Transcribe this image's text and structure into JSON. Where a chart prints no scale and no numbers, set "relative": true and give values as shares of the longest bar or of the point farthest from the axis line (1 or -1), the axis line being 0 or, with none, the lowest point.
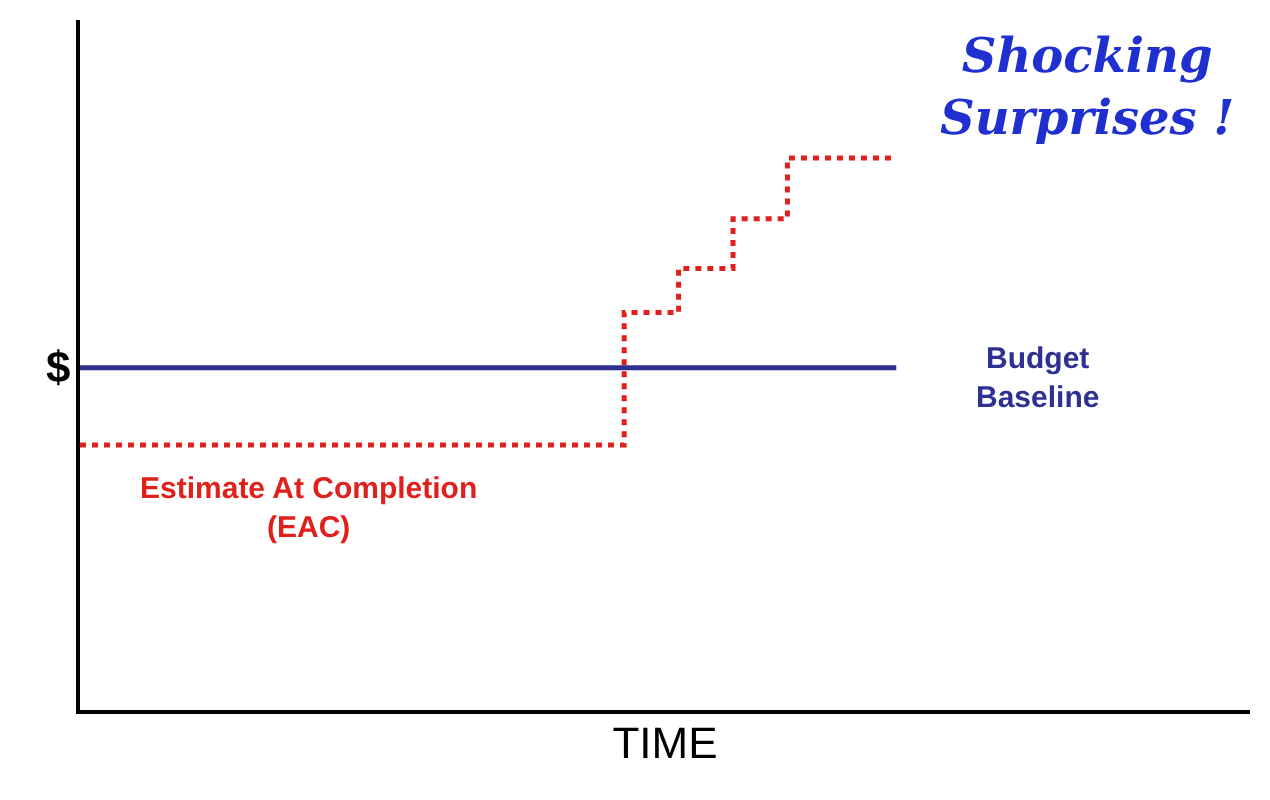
{
  "chart_data": {
    "type": "line",
    "relative": true,
    "xlabel": "TIME",
    "ylabel": "$",
    "categories": [
      null,
      null,
      null,
      null,
      null,
      null,
      null,
      null,
      null,
      null,
      null,
      null,
      null,
      null,
      null,
      null,
      null,
      null,
      null,
      null,
      null,
      null
    ],
    "series": [
      {
        "name": "Budget Baseline",
        "color": "#2e3192",
        "line_style": "solid",
        "values": [
          0.62,
          0.62,
          0.62,
          0.62,
          0.62,
          0.62,
          0.62,
          0.62,
          0.62,
          0.62,
          0.62,
          0.62,
          0.62,
          0.62,
          0.62,
          0.62,
          null,
          null,
          null,
          null,
          null,
          null
        ]
      },
      {
        "name": "Estimate At Completion (EAC)",
        "type": "step",
        "color": "#e0201b",
        "line_style": "dotted",
        "values": [
          0.48,
          0.48,
          0.48,
          0.48,
          0.48,
          0.48,
          0.48,
          0.48,
          0.48,
          0.48,
          0.72,
          0.8,
          0.89,
          1.0,
          1.0,
          1.0,
          null,
          null,
          null,
          null,
          null,
          null
        ]
      }
    ],
    "annotations": [
      "Shocking Surprises !"
    ],
    "legend": false,
    "marker": "none"
  }
}
